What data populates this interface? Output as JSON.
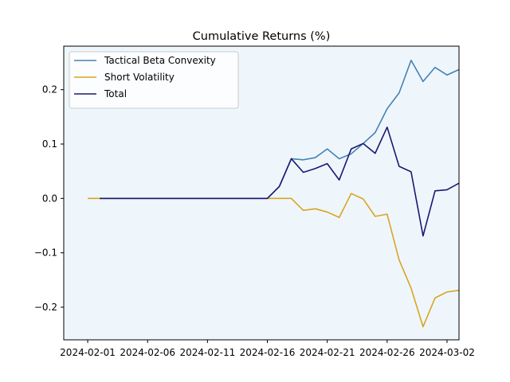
{
  "chart_data": {
    "type": "line",
    "title": "Cumulative Returns (%)",
    "xlabel": "",
    "ylabel": "",
    "x_ticks": [
      "2024-02-01",
      "2024-02-06",
      "2024-02-11",
      "2024-02-16",
      "2024-02-21",
      "2024-02-26",
      "2024-03-02"
    ],
    "y_ticks": [
      -0.2,
      -0.1,
      0.0,
      0.1,
      0.2
    ],
    "xlim": [
      "2024-01-30",
      "2024-03-03"
    ],
    "ylim": [
      -0.26,
      0.28
    ],
    "grid": false,
    "legend_position": "upper-left",
    "plot_background": "#eef6fc",
    "x": [
      "2024-02-01",
      "2024-02-02",
      "2024-02-03",
      "2024-02-04",
      "2024-02-05",
      "2024-02-06",
      "2024-02-07",
      "2024-02-08",
      "2024-02-09",
      "2024-02-10",
      "2024-02-11",
      "2024-02-12",
      "2024-02-13",
      "2024-02-14",
      "2024-02-15",
      "2024-02-16",
      "2024-02-17",
      "2024-02-18",
      "2024-02-19",
      "2024-02-20",
      "2024-02-21",
      "2024-02-22",
      "2024-02-23",
      "2024-02-24",
      "2024-02-25",
      "2024-02-26",
      "2024-02-27",
      "2024-02-28",
      "2024-02-29",
      "2024-03-01",
      "2024-03-02",
      "2024-03-03"
    ],
    "series": [
      {
        "name": "Tactical Beta Convexity",
        "color": "#4682b4",
        "x": [
          "2024-02-02",
          "2024-02-03",
          "2024-02-04",
          "2024-02-05",
          "2024-02-06",
          "2024-02-07",
          "2024-02-08",
          "2024-02-09",
          "2024-02-10",
          "2024-02-11",
          "2024-02-12",
          "2024-02-13",
          "2024-02-14",
          "2024-02-15",
          "2024-02-16",
          "2024-02-17",
          "2024-02-18",
          "2024-02-19",
          "2024-02-20",
          "2024-02-21",
          "2024-02-22",
          "2024-02-23",
          "2024-02-24",
          "2024-02-25",
          "2024-02-26",
          "2024-02-27",
          "2024-02-28",
          "2024-02-29",
          "2024-03-01",
          "2024-03-02",
          "2024-03-03"
        ],
        "values": [
          0.0,
          0.0,
          0.0,
          0.0,
          0.0,
          0.0,
          0.0,
          0.0,
          0.0,
          0.0,
          0.0,
          0.0,
          0.0,
          0.0,
          0.0,
          0.022,
          0.073,
          0.071,
          0.075,
          0.091,
          0.073,
          0.082,
          0.101,
          0.121,
          0.165,
          0.194,
          0.254,
          0.215,
          0.241,
          0.227,
          0.237
        ]
      },
      {
        "name": "Short Volatility",
        "color": "#daa520",
        "x": [
          "2024-02-01",
          "2024-02-02",
          "2024-02-03",
          "2024-02-04",
          "2024-02-05",
          "2024-02-06",
          "2024-02-07",
          "2024-02-08",
          "2024-02-09",
          "2024-02-10",
          "2024-02-11",
          "2024-02-12",
          "2024-02-13",
          "2024-02-14",
          "2024-02-15",
          "2024-02-16",
          "2024-02-17",
          "2024-02-18",
          "2024-02-19",
          "2024-02-20",
          "2024-02-21",
          "2024-02-22",
          "2024-02-23",
          "2024-02-24",
          "2024-02-25",
          "2024-02-26",
          "2024-02-27",
          "2024-02-28",
          "2024-02-29",
          "2024-03-01",
          "2024-03-02",
          "2024-03-03"
        ],
        "values": [
          0.0,
          0.0,
          0.0,
          0.0,
          0.0,
          0.0,
          0.0,
          0.0,
          0.0,
          0.0,
          0.0,
          0.0,
          0.0,
          0.0,
          0.0,
          0.0,
          0.0,
          0.0,
          -0.022,
          -0.019,
          -0.025,
          -0.035,
          0.009,
          -0.001,
          -0.033,
          -0.029,
          -0.113,
          -0.165,
          -0.236,
          -0.183,
          -0.172,
          -0.169
        ]
      },
      {
        "name": "Total",
        "color": "#191970",
        "x": [
          "2024-02-02",
          "2024-02-03",
          "2024-02-04",
          "2024-02-05",
          "2024-02-06",
          "2024-02-07",
          "2024-02-08",
          "2024-02-09",
          "2024-02-10",
          "2024-02-11",
          "2024-02-12",
          "2024-02-13",
          "2024-02-14",
          "2024-02-15",
          "2024-02-16",
          "2024-02-17",
          "2024-02-18",
          "2024-02-19",
          "2024-02-20",
          "2024-02-21",
          "2024-02-22",
          "2024-02-23",
          "2024-02-24",
          "2024-02-25",
          "2024-02-26",
          "2024-02-27",
          "2024-02-28",
          "2024-02-29",
          "2024-03-01",
          "2024-03-02",
          "2024-03-03"
        ],
        "values": [
          0.0,
          0.0,
          0.0,
          0.0,
          0.0,
          0.0,
          0.0,
          0.0,
          0.0,
          0.0,
          0.0,
          0.0,
          0.0,
          0.0,
          0.0,
          0.022,
          0.073,
          0.048,
          0.055,
          0.064,
          0.034,
          0.091,
          0.101,
          0.083,
          0.131,
          0.059,
          0.049,
          -0.069,
          0.014,
          0.016,
          0.028
        ]
      }
    ]
  }
}
